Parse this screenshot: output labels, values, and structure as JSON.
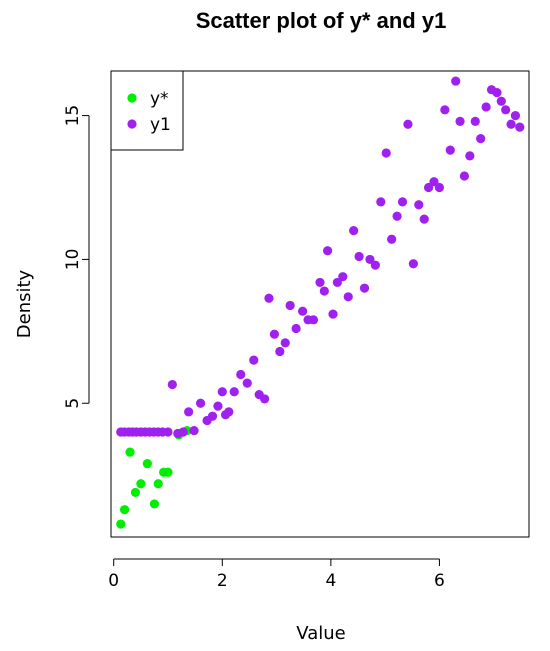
{
  "chart_data": {
    "type": "scatter",
    "title": "Scatter plot of y* and y1",
    "xlabel": "Value",
    "ylabel": "Density",
    "xlim": [
      -0.05,
      7.65
    ],
    "ylim": [
      0.35,
      16.55
    ],
    "xticks": [
      0,
      2,
      4,
      6
    ],
    "yticks": [
      5,
      10,
      15
    ],
    "grid": false,
    "legend_position": "top-left",
    "series": [
      {
        "name": "y*",
        "color": "#00ee00",
        "x": [
          0.13,
          0.2,
          0.3,
          0.4,
          0.5,
          0.62,
          0.75,
          0.82,
          0.92,
          1.0,
          1.2,
          1.35
        ],
        "y": [
          0.8,
          1.3,
          3.3,
          1.9,
          2.2,
          2.9,
          1.5,
          2.2,
          2.6,
          2.6,
          3.9,
          4.05
        ]
      },
      {
        "name": "y1",
        "color": "#a020f0",
        "x": [
          0.13,
          0.2,
          0.28,
          0.35,
          0.42,
          0.5,
          0.58,
          0.66,
          0.74,
          0.82,
          0.9,
          1.0,
          1.08,
          1.18,
          1.28,
          1.38,
          1.48,
          1.6,
          1.72,
          1.82,
          1.92,
          2.0,
          2.06,
          2.12,
          2.22,
          2.34,
          2.46,
          2.58,
          2.68,
          2.78,
          2.86,
          2.96,
          3.06,
          3.16,
          3.25,
          3.36,
          3.48,
          3.58,
          3.68,
          3.8,
          3.88,
          3.94,
          4.04,
          4.12,
          4.22,
          4.32,
          4.42,
          4.52,
          4.62,
          4.72,
          4.82,
          4.92,
          5.02,
          5.12,
          5.22,
          5.32,
          5.42,
          5.52,
          5.62,
          5.72,
          5.8,
          5.9,
          6.0,
          6.1,
          6.2,
          6.3,
          6.38,
          6.46,
          6.56,
          6.66,
          6.76,
          6.86,
          6.96,
          7.06,
          7.14,
          7.22,
          7.32,
          7.4,
          7.48
        ],
        "y": [
          4.0,
          4.0,
          4.0,
          4.0,
          4.0,
          4.0,
          4.0,
          4.0,
          4.0,
          4.0,
          4.0,
          4.0,
          5.65,
          3.95,
          4.0,
          4.7,
          4.05,
          5.0,
          4.4,
          4.55,
          4.9,
          5.4,
          4.6,
          4.7,
          5.4,
          6.0,
          5.7,
          6.5,
          5.3,
          5.15,
          8.65,
          7.4,
          6.8,
          7.1,
          8.4,
          7.6,
          8.2,
          7.9,
          7.9,
          9.2,
          8.9,
          10.3,
          8.1,
          9.2,
          9.4,
          8.7,
          11.0,
          10.1,
          9.0,
          10.0,
          9.8,
          12.0,
          13.7,
          10.7,
          11.5,
          12.0,
          14.7,
          9.85,
          11.9,
          11.4,
          12.5,
          12.7,
          12.5,
          15.2,
          13.8,
          16.2,
          14.8,
          12.9,
          13.6,
          14.8,
          14.2,
          15.3,
          15.9,
          15.8,
          15.5,
          15.2,
          14.7,
          15.0,
          14.6
        ]
      }
    ]
  }
}
